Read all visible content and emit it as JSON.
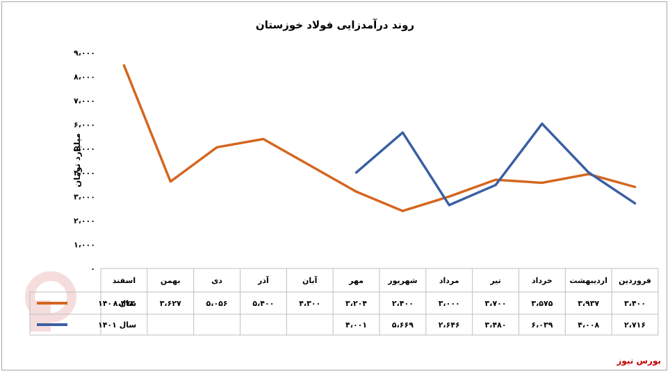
{
  "brand": "بورس نیوز",
  "chart_data": {
    "type": "line",
    "title": "روند درآمدزایی فولاد خوزستان",
    "ylabel": "میلیارد تومان",
    "xlabel": "",
    "ylim": [
      0,
      9000
    ],
    "yticks": [
      "۰",
      "۱،۰۰۰",
      "۲،۰۰۰",
      "۳،۰۰۰",
      "۴،۰۰۰",
      "۵،۰۰۰",
      "۶،۰۰۰",
      "۷،۰۰۰",
      "۸،۰۰۰",
      "۹،۰۰۰"
    ],
    "grid": false,
    "legend": "data-table",
    "categories": [
      "فروردین",
      "اردیبهشت",
      "خرداد",
      "تیر",
      "مرداد",
      "شهریور",
      "مهر",
      "آبان",
      "آذر",
      "دی",
      "بهمن",
      "اسفند"
    ],
    "series": [
      {
        "name": "سال ۱۴۰۰",
        "color": "#d4661f",
        "values": [
          3400,
          3937,
          3575,
          3700,
          3000,
          2400,
          3204,
          4300,
          5400,
          5056,
          3627,
          8473
        ],
        "labels": [
          "۳،۴۰۰",
          "۳،۹۳۷",
          "۳،۵۷۵",
          "۳،۷۰۰",
          "۳،۰۰۰",
          "۲،۴۰۰",
          "۳،۲۰۴",
          "۴،۳۰۰",
          "۵،۴۰۰",
          "۵،۰۵۶",
          "۳،۶۲۷",
          "۸،۴۷۳"
        ]
      },
      {
        "name": "سال ۱۴۰۱",
        "color": "#3a5fa3",
        "values": [
          2716,
          4008,
          6039,
          3480,
          2646,
          5669,
          4001,
          null,
          null,
          null,
          null,
          null
        ],
        "labels": [
          "۲،۷۱۶",
          "۴،۰۰۸",
          "۶،۰۳۹",
          "۳،۴۸۰",
          "۲،۶۴۶",
          "۵،۶۶۹",
          "۴،۰۰۱",
          "",
          "",
          "",
          "",
          ""
        ]
      }
    ]
  }
}
